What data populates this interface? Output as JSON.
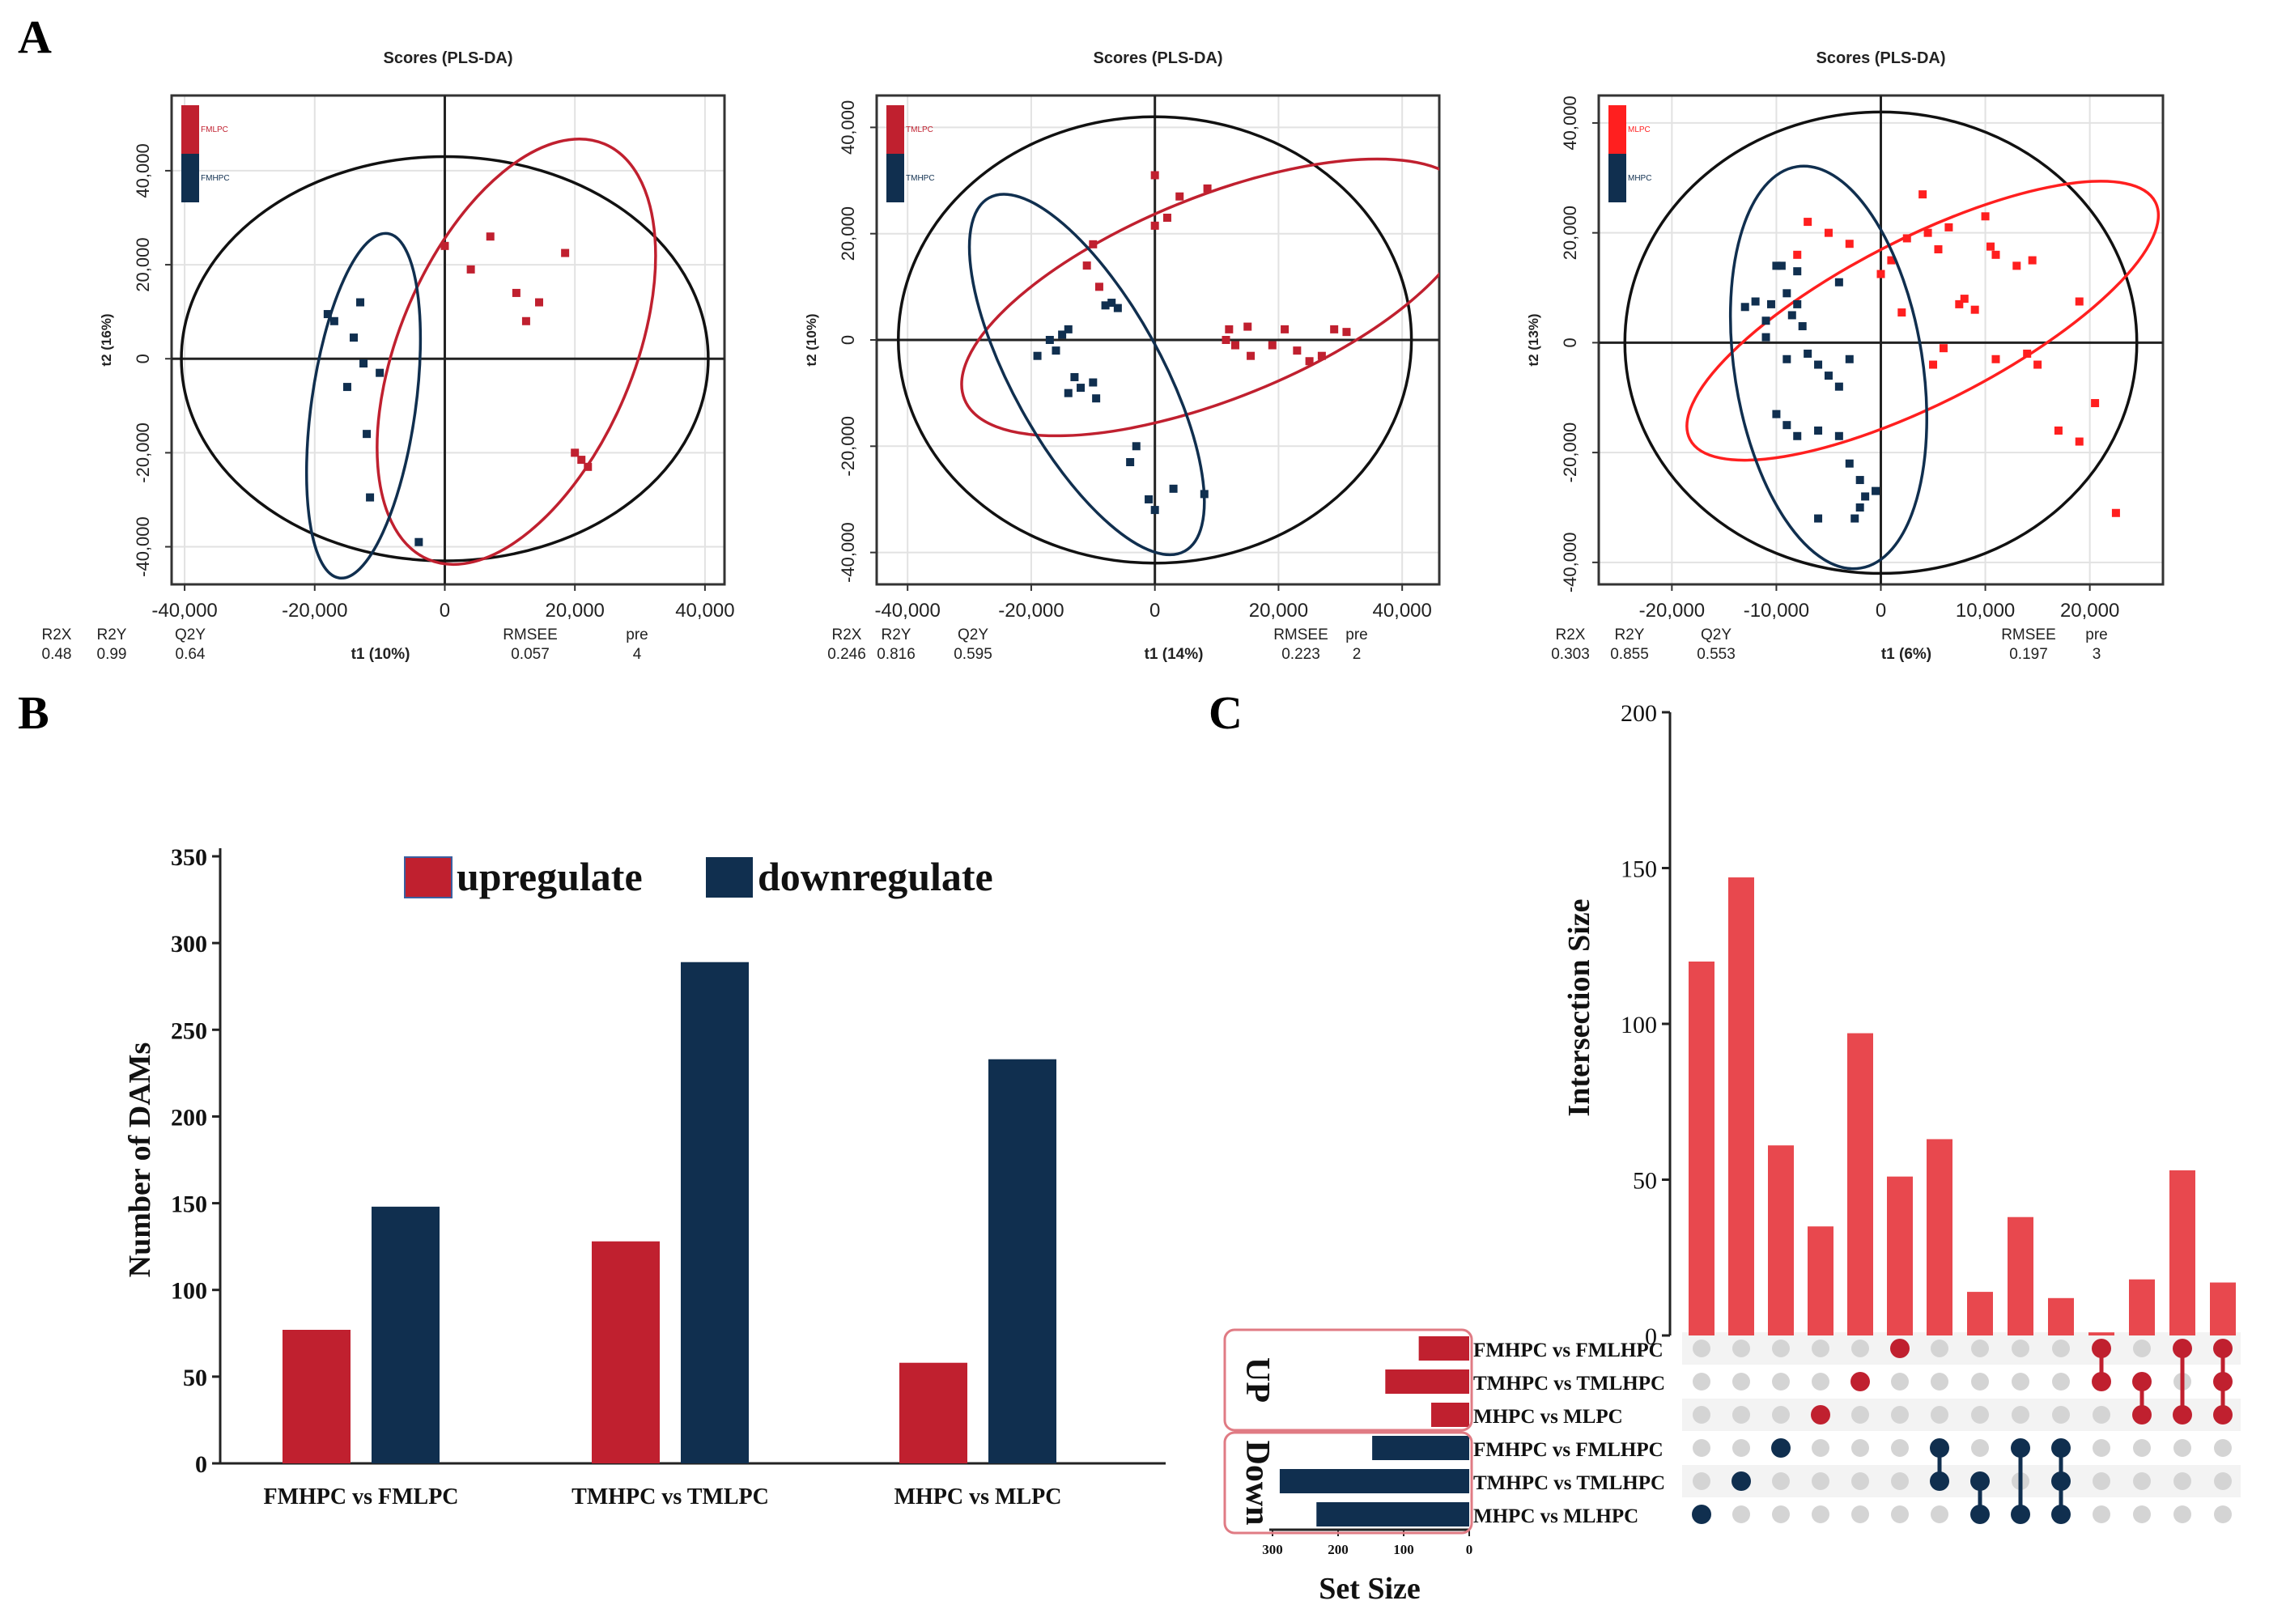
{
  "panels": {
    "a": "A",
    "b": "B",
    "c": "C"
  },
  "colors": {
    "red": "#c0202f",
    "navy": "#102f4f",
    "bright_red": "#ff1f1f",
    "upset_bar": "#e8484e",
    "grey_dot": "#d4d4d4",
    "box_outline": "#e07b84"
  },
  "chart_data": [
    {
      "type": "scatter",
      "title": "Scores (PLS-DA)",
      "xlabel": "t1 (10%)",
      "ylabel": "t2 (16%)",
      "xlim": [
        -42000,
        43000
      ],
      "ylim": [
        -48000,
        56000
      ],
      "xticks": [
        -40000,
        -20000,
        0,
        20000,
        40000
      ],
      "xtick_labels": [
        "-40,000",
        "-20,000",
        "0",
        "20,000",
        "40,000"
      ],
      "yticks": [
        -40000,
        -20000,
        0,
        20000,
        40000
      ],
      "ytick_labels": [
        "-40,000",
        "-20,000",
        "0",
        "20,000",
        "40,000"
      ],
      "legend": [
        "FMLPC",
        "FMHPC"
      ],
      "stats_labels": [
        "R2X",
        "R2Y",
        "Q2Y",
        "RMSEE",
        "pre"
      ],
      "stats_values": [
        "0.48",
        "0.99",
        "0.64",
        "0.057",
        "4"
      ],
      "hotelling": {
        "cx": 0,
        "cy": 0,
        "rx": 40500,
        "ry": 43000
      },
      "series": [
        {
          "name": "FMLPC",
          "color": "red",
          "points": [
            [
              0,
              24000
            ],
            [
              4000,
              19000
            ],
            [
              7000,
              26000
            ],
            [
              11000,
              14000
            ],
            [
              12500,
              8000
            ],
            [
              14500,
              12000
            ],
            [
              18500,
              22500
            ],
            [
              20000,
              -20000
            ],
            [
              21000,
              -21500
            ],
            [
              22000,
              -23000
            ]
          ],
          "ellipse": {
            "cx": 11000,
            "cy": 1500,
            "rx": 18000,
            "ry": 48000,
            "angle": 23
          }
        },
        {
          "name": "FMHPC",
          "color": "navy",
          "points": [
            [
              -18000,
              9500
            ],
            [
              -17000,
              8000
            ],
            [
              -14000,
              4500
            ],
            [
              -13000,
              12000
            ],
            [
              -12500,
              -1000
            ],
            [
              -15000,
              -6000
            ],
            [
              -10000,
              -3000
            ],
            [
              -12000,
              -16000
            ],
            [
              -11500,
              -29500
            ],
            [
              -4000,
              -39000
            ]
          ],
          "ellipse": {
            "cx": -12500,
            "cy": -10000,
            "rx": 8000,
            "ry": 37000,
            "angle": 8
          }
        }
      ]
    },
    {
      "type": "scatter",
      "title": "Scores (PLS-DA)",
      "xlabel": "t1 (14%)",
      "ylabel": "t2 (10%)",
      "xlim": [
        -45000,
        46000
      ],
      "ylim": [
        -46000,
        46000
      ],
      "xticks": [
        -40000,
        -20000,
        0,
        20000,
        40000
      ],
      "xtick_labels": [
        "-40,000",
        "-20,000",
        "0",
        "20,000",
        "40,000"
      ],
      "yticks": [
        -40000,
        -20000,
        0,
        20000,
        40000
      ],
      "ytick_labels": [
        "-40,000",
        "-20,000",
        "0",
        "20,000",
        "40,000"
      ],
      "legend": [
        "TMLPC",
        "TMHPC"
      ],
      "stats_labels": [
        "R2X",
        "R2Y",
        "Q2Y",
        "RMSEE",
        "pre"
      ],
      "stats_values": [
        "0.246",
        "0.816",
        "0.595",
        "0.223",
        "2"
      ],
      "hotelling": {
        "cx": 0,
        "cy": 0,
        "rx": 41500,
        "ry": 42000
      },
      "series": [
        {
          "name": "TMLPC",
          "color": "red",
          "points": [
            [
              0,
              31000
            ],
            [
              2000,
              23000
            ],
            [
              4000,
              27000
            ],
            [
              8500,
              28500
            ],
            [
              0,
              21500
            ],
            [
              -10000,
              18000
            ],
            [
              -11000,
              14000
            ],
            [
              -9000,
              10000
            ],
            [
              12000,
              2000
            ],
            [
              15000,
              2500
            ],
            [
              13000,
              -1000
            ],
            [
              15500,
              -3000
            ],
            [
              21000,
              2000
            ],
            [
              23000,
              -2000
            ],
            [
              25000,
              -4000
            ],
            [
              27000,
              -3000
            ],
            [
              29000,
              2000
            ],
            [
              31000,
              1500
            ],
            [
              11500,
              0
            ],
            [
              19000,
              -1000
            ]
          ],
          "ellipse": {
            "cx": 10000,
            "cy": 8000,
            "rx": 44000,
            "ry": 19000,
            "angle": -22
          }
        },
        {
          "name": "TMHPC",
          "color": "navy",
          "points": [
            [
              -17000,
              0
            ],
            [
              -16000,
              -2000
            ],
            [
              -15000,
              1000
            ],
            [
              -14000,
              2000
            ],
            [
              -13000,
              -7000
            ],
            [
              -12000,
              -9000
            ],
            [
              -10000,
              -8000
            ],
            [
              -9500,
              -11000
            ],
            [
              -8000,
              6500
            ],
            [
              -7000,
              7000
            ],
            [
              -6000,
              6000
            ],
            [
              -3000,
              -20000
            ],
            [
              -4000,
              -23000
            ],
            [
              -1000,
              -30000
            ],
            [
              0,
              -32000
            ],
            [
              3000,
              -28000
            ],
            [
              8000,
              -29000
            ],
            [
              -14000,
              -10000
            ],
            [
              -19000,
              -3000
            ]
          ],
          "ellipse": {
            "cx": -11000,
            "cy": -6500,
            "rx": 12000,
            "ry": 38000,
            "angle": -29
          }
        }
      ]
    },
    {
      "type": "scatter",
      "title": "Scores (PLS-DA)",
      "xlabel": "t1 (6%)",
      "ylabel": "t2 (13%)",
      "xlim": [
        -27000,
        27000
      ],
      "ylim": [
        -44000,
        45000
      ],
      "xticks": [
        -20000,
        -10000,
        0,
        10000,
        20000
      ],
      "xtick_labels": [
        "-20,000",
        "-10,000",
        "0",
        "10,000",
        "20,000"
      ],
      "yticks": [
        -40000,
        -20000,
        0,
        20000,
        40000
      ],
      "ytick_labels": [
        "-40,000",
        "-20,000",
        "0",
        "20,000",
        "40,000"
      ],
      "legend": [
        "MLPC",
        "MHPC"
      ],
      "stats_labels": [
        "R2X",
        "R2Y",
        "Q2Y",
        "RMSEE",
        "pre"
      ],
      "stats_values": [
        "0.303",
        "0.855",
        "0.553",
        "0.197",
        "3"
      ],
      "hotelling": {
        "cx": 0,
        "cy": 0,
        "rx": 24500,
        "ry": 42000
      },
      "series": [
        {
          "name": "MLPC",
          "color": "bright_red",
          "points": [
            [
              -8000,
              16000
            ],
            [
              -7000,
              22000
            ],
            [
              -5000,
              20000
            ],
            [
              -3000,
              18000
            ],
            [
              0,
              12500
            ],
            [
              1000,
              15000
            ],
            [
              2500,
              19000
            ],
            [
              4000,
              27000
            ],
            [
              4500,
              20000
            ],
            [
              5500,
              17000
            ],
            [
              6500,
              21000
            ],
            [
              8000,
              8000
            ],
            [
              9000,
              6000
            ],
            [
              10000,
              23000
            ],
            [
              11000,
              16000
            ],
            [
              13000,
              14000
            ],
            [
              14500,
              15000
            ],
            [
              17000,
              -16000
            ],
            [
              19000,
              -18000
            ],
            [
              20500,
              -11000
            ],
            [
              22500,
              -31000
            ],
            [
              19000,
              7500
            ],
            [
              5000,
              -4000
            ],
            [
              6000,
              -1000
            ],
            [
              11000,
              -3000
            ],
            [
              14000,
              -2000
            ],
            [
              15000,
              -4000
            ],
            [
              2000,
              5500
            ],
            [
              7500,
              7000
            ],
            [
              10500,
              17500
            ]
          ],
          "ellipse": {
            "cx": 4000,
            "cy": 4000,
            "rx": 25000,
            "ry": 15000,
            "angle": -27
          }
        },
        {
          "name": "MHPC",
          "color": "navy",
          "points": [
            [
              -13000,
              6500
            ],
            [
              -12000,
              7500
            ],
            [
              -11000,
              4000
            ],
            [
              -10500,
              7000
            ],
            [
              -10000,
              14000
            ],
            [
              -9500,
              14000
            ],
            [
              -9000,
              9000
            ],
            [
              -8500,
              5000
            ],
            [
              -8000,
              7000
            ],
            [
              -7500,
              3000
            ],
            [
              -9000,
              -3000
            ],
            [
              -7000,
              -2000
            ],
            [
              -6000,
              -4000
            ],
            [
              -5000,
              -6000
            ],
            [
              -4000,
              -8000
            ],
            [
              -3000,
              -3000
            ],
            [
              -10000,
              -13000
            ],
            [
              -9000,
              -15000
            ],
            [
              -8000,
              -17000
            ],
            [
              -6000,
              -16000
            ],
            [
              -4000,
              -17000
            ],
            [
              -3000,
              -22000
            ],
            [
              -2000,
              -25000
            ],
            [
              -1500,
              -28000
            ],
            [
              -500,
              -27000
            ],
            [
              -2000,
              -30000
            ],
            [
              -2500,
              -32000
            ],
            [
              -6000,
              -32000
            ],
            [
              -11000,
              1000
            ],
            [
              -8000,
              13000
            ],
            [
              -4000,
              11000
            ]
          ],
          "ellipse": {
            "cx": -5000,
            "cy": -4500,
            "rx": 9000,
            "ry": 37000,
            "angle": -9
          }
        }
      ]
    },
    {
      "type": "bar",
      "ylabel": "Number of DAMs",
      "ylim": [
        0,
        350
      ],
      "yticks": [
        0,
        50,
        100,
        150,
        200,
        250,
        300,
        350
      ],
      "ytick_labels": [
        "0",
        "50",
        "100",
        "150",
        "200",
        "250",
        "300",
        "350"
      ],
      "categories": [
        "FMHPC vs FMLPC",
        "TMHPC vs TMLPC",
        "MHPC vs MLPC"
      ],
      "series": [
        {
          "name": "upregulate",
          "color": "red",
          "values": [
            77,
            128,
            58
          ]
        },
        {
          "name": "downregulate",
          "color": "navy",
          "values": [
            148,
            289,
            233
          ]
        }
      ]
    },
    {
      "type": "bar",
      "subtype": "upset",
      "ylabel": "Intersection Size",
      "ylim": [
        0,
        200
      ],
      "yticks": [
        0,
        50,
        100,
        150,
        200
      ],
      "ytick_labels": [
        "0",
        "50",
        "100",
        "150",
        "200"
      ],
      "intersection_sizes": [
        120,
        147,
        61,
        35,
        97,
        51,
        63,
        14,
        38,
        12,
        1,
        18,
        53,
        17
      ],
      "sets": [
        "FMHPC vs FMLHPC",
        "TMHPC vs TMLHPC",
        "MHPC vs MLPC",
        "FMHPC vs FMLHPC",
        "TMHPC vs TMLHPC",
        "MHPC vs MLHPC"
      ],
      "set_groups": [
        "UP",
        "UP",
        "UP",
        "Down",
        "Down",
        "Down"
      ],
      "group_labels": [
        "UP",
        "Down"
      ],
      "set_sizes": [
        77,
        128,
        58,
        148,
        289,
        233
      ],
      "set_size_xlabel": "Set Size",
      "set_size_xticks": [
        300,
        200,
        100,
        0
      ],
      "set_size_xtick_labels": [
        "300",
        "200",
        "100",
        "0"
      ],
      "membership": [
        [
          5
        ],
        [
          4
        ],
        [
          3
        ],
        [
          2
        ],
        [
          1
        ],
        [
          0
        ],
        [
          3,
          4
        ],
        [
          4,
          5
        ],
        [
          3,
          5
        ],
        [
          3,
          4,
          5
        ],
        [
          0,
          1
        ],
        [
          1,
          2
        ],
        [
          0,
          2
        ],
        [
          0,
          1,
          2
        ]
      ]
    }
  ]
}
